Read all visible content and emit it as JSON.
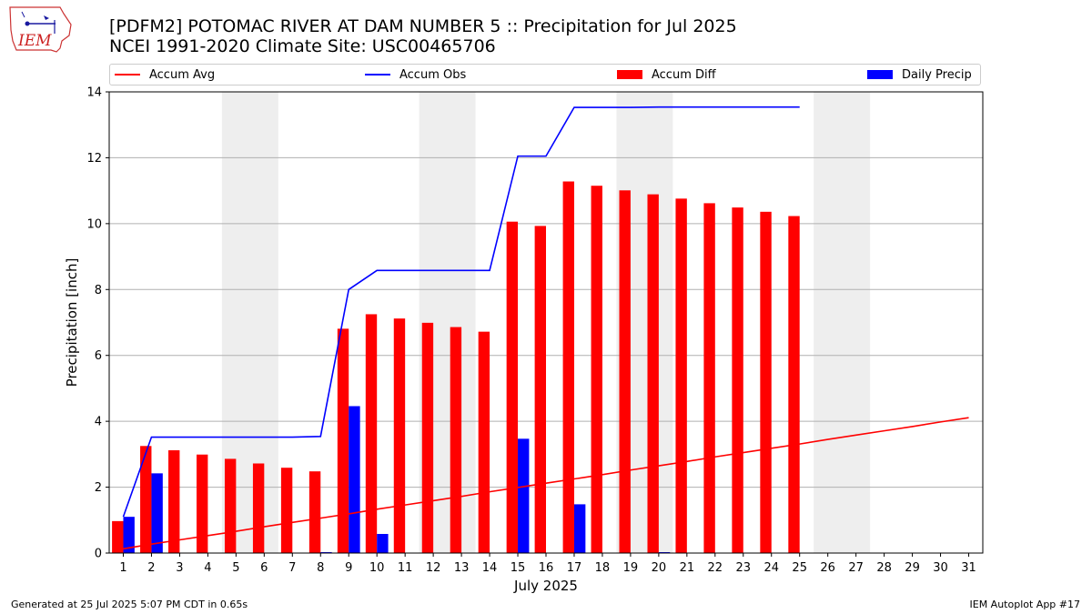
{
  "header": {
    "title_line1": "[PDFM2] POTOMAC RIVER AT DAM NUMBER 5 :: Precipitation for Jul 2025",
    "title_line2": "NCEI 1991-2020 Climate Site: USC00465706"
  },
  "logo": {
    "text": "IEM"
  },
  "footer": {
    "generated": "Generated at 25 Jul 2025 5:07 PM CDT in 0.65s",
    "app": "IEM Autoplot App #17"
  },
  "colors": {
    "avg": "#ff0000",
    "obs": "#0000ff",
    "diff": "#ff0000",
    "daily": "#0000ff",
    "weekend": "#eeeeee",
    "grid": "#b0b0b0"
  },
  "chart_data": {
    "type": "bar",
    "xlabel": "July 2025",
    "ylabel": "Precipitation [inch]",
    "xlim": [
      0.5,
      31.5
    ],
    "ylim": [
      0,
      14
    ],
    "yticks": [
      0,
      2,
      4,
      6,
      8,
      10,
      12,
      14
    ],
    "x": [
      1,
      2,
      3,
      4,
      5,
      6,
      7,
      8,
      9,
      10,
      11,
      12,
      13,
      14,
      15,
      16,
      17,
      18,
      19,
      20,
      21,
      22,
      23,
      24,
      25,
      26,
      27,
      28,
      29,
      30,
      31
    ],
    "weekend_spans": [
      [
        4.5,
        6.5
      ],
      [
        11.5,
        13.5
      ],
      [
        18.5,
        20.5
      ],
      [
        25.5,
        27.5
      ]
    ],
    "grid": "horizontal",
    "legend_position": "top",
    "legend": [
      "Accum Avg",
      "Accum Obs",
      "Accum Diff",
      "Daily Precip"
    ],
    "series": [
      {
        "name": "Accum Avg",
        "kind": "line",
        "values": [
          0.13,
          0.27,
          0.4,
          0.53,
          0.66,
          0.8,
          0.93,
          1.06,
          1.19,
          1.33,
          1.46,
          1.59,
          1.72,
          1.86,
          1.99,
          2.12,
          2.25,
          2.38,
          2.52,
          2.65,
          2.78,
          2.92,
          3.05,
          3.18,
          3.31,
          3.45,
          3.58,
          3.71,
          3.84,
          3.98,
          4.11
        ]
      },
      {
        "name": "Accum Obs",
        "kind": "line",
        "values": [
          1.1,
          3.52,
          3.52,
          3.52,
          3.52,
          3.52,
          3.52,
          3.54,
          8.0,
          8.58,
          8.58,
          8.58,
          8.58,
          8.58,
          12.05,
          12.05,
          13.53,
          13.53,
          13.53,
          13.54,
          13.54,
          13.54,
          13.54,
          13.54,
          13.54,
          null,
          null,
          null,
          null,
          null,
          null
        ]
      },
      {
        "name": "Accum Diff",
        "kind": "bar",
        "values": [
          0.97,
          3.25,
          3.12,
          2.99,
          2.86,
          2.72,
          2.59,
          2.48,
          6.81,
          7.25,
          7.12,
          6.99,
          6.86,
          6.72,
          10.06,
          9.93,
          11.28,
          11.15,
          11.01,
          10.89,
          10.76,
          10.62,
          10.49,
          10.36,
          10.23,
          null,
          null,
          null,
          null,
          null,
          null
        ]
      },
      {
        "name": "Daily Precip",
        "kind": "bar",
        "values": [
          1.1,
          2.42,
          0,
          0,
          0,
          0,
          0,
          0.02,
          4.46,
          0.58,
          0,
          0,
          0,
          0,
          3.47,
          0,
          1.48,
          0,
          0,
          0.01,
          0,
          0,
          0,
          0,
          0,
          null,
          null,
          null,
          null,
          null,
          null
        ]
      }
    ]
  }
}
